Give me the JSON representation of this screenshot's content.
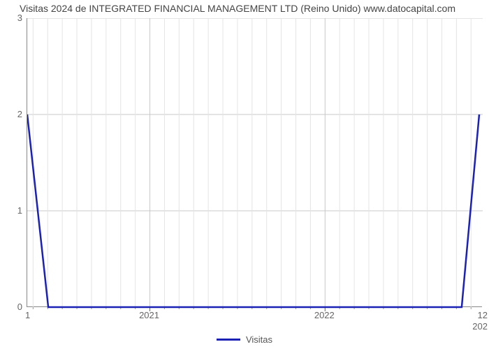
{
  "chart": {
    "type": "line",
    "title": "Visitas 2024 de INTEGRATED FINANCIAL MANAGEMENT LTD (Reino Unido) www.datocapital.com",
    "title_fontsize": 14,
    "title_color": "#444444",
    "background_color": "#ffffff",
    "plot_border_color": "#888888",
    "grid_major_color": "#c8c8c8",
    "grid_minor_color": "#e4e4e4",
    "grid_on": true,
    "series": {
      "name": "Visitas",
      "color": "#1b21b5",
      "line_width": 2.5,
      "x": [
        2020.3,
        2020.42,
        2022.78,
        2022.88
      ],
      "y": [
        2.0,
        0.0,
        0.0,
        2.0
      ]
    },
    "x_axis": {
      "lim": [
        2020.3,
        2022.9
      ],
      "major_ticks": [
        2021,
        2022
      ],
      "minor_tick_count_between": 11,
      "left_under_label": "1",
      "right_under_labels": [
        "12",
        "202"
      ],
      "label_fontsize": 13,
      "label_color": "#666666"
    },
    "y_axis": {
      "lim": [
        0,
        3
      ],
      "major_ticks": [
        0,
        1,
        2,
        3
      ],
      "label_fontsize": 13,
      "label_color": "#666666"
    },
    "legend": {
      "label": "Visitas",
      "swatch_color": "#1b21b5",
      "position": "bottom-center",
      "fontsize": 13
    }
  }
}
